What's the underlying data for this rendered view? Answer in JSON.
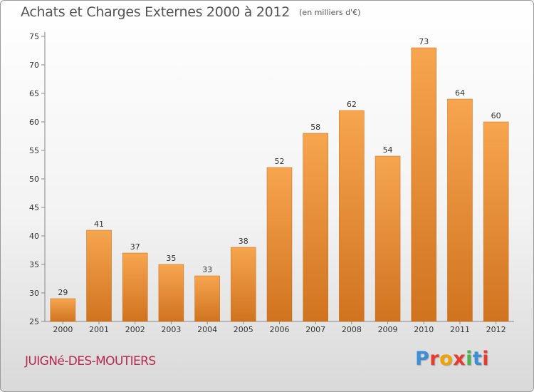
{
  "header": {
    "title": "Achats et Charges Externes 2000 à 2012",
    "subtitle": "(en milliers d'€)"
  },
  "footer": {
    "commune": "JUIGNé-DES-MOUTIERS",
    "brand": "Proxiti",
    "brand_colors": [
      "#3a8fd6",
      "#e63b2e",
      "#f0a202",
      "#e63b2e",
      "#4caf50",
      "#3a8fd6",
      "#e63b2e"
    ]
  },
  "chart_data": {
    "type": "bar",
    "categories": [
      "2000",
      "2001",
      "2002",
      "2003",
      "2004",
      "2005",
      "2006",
      "2007",
      "2008",
      "2009",
      "2010",
      "2011",
      "2012"
    ],
    "values": [
      29,
      41,
      37,
      35,
      33,
      38,
      52,
      58,
      62,
      54,
      73,
      64,
      60
    ],
    "title": "Achats et Charges Externes 2000 à 2012",
    "xlabel": "",
    "ylabel": "",
    "ylim": [
      25,
      75
    ],
    "yticks": [
      25,
      30,
      35,
      40,
      45,
      50,
      55,
      60,
      65,
      70,
      75
    ],
    "grid": false,
    "bar_color_top": "#f7a54f",
    "bar_color_bottom": "#d0731f"
  }
}
